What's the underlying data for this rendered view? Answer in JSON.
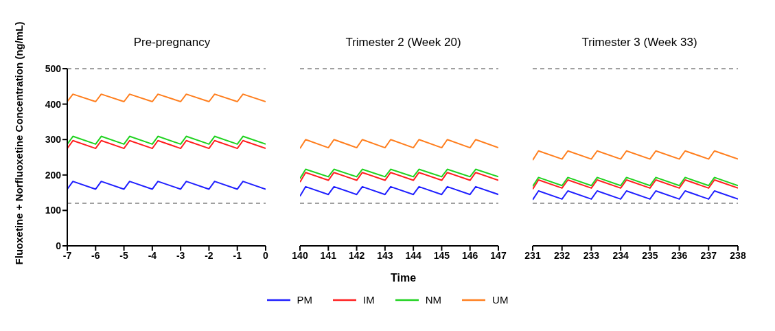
{
  "chart_data": [
    {
      "type": "line",
      "title": "Pre-pregnancy",
      "legend": "bottom",
      "ylabel": "Fluoxetine + Norfluoxetine Concentration (ng/mL)",
      "xlim": [
        -7,
        0
      ],
      "xticks": [
        -7,
        -6,
        -5,
        -4,
        -3,
        -2,
        -1,
        0
      ],
      "ylim": [
        0,
        500
      ],
      "yticks": [
        0,
        100,
        200,
        300,
        400,
        500
      ],
      "grid": false,
      "marker": "none",
      "ref_lines": [
        {
          "axis": "y",
          "value": 500,
          "color": "#a0a0a0",
          "line_style": "dashed"
        },
        {
          "axis": "y",
          "value": 120,
          "color": "#a0a0a0",
          "line_style": "dashed"
        }
      ],
      "series": [
        {
          "name": "PM",
          "color": "#1f1fff",
          "x": [
            -7,
            -6.8,
            -6,
            -5.8,
            -5,
            -4.8,
            -4,
            -3.8,
            -3,
            -2.8,
            -2,
            -1.8,
            -1,
            -0.8,
            0
          ],
          "values": [
            160,
            182,
            160,
            182,
            160,
            182,
            160,
            182,
            160,
            182,
            160,
            182,
            160,
            182,
            160
          ]
        },
        {
          "name": "IM",
          "color": "#ff1f1f",
          "x": [
            -7,
            -6.8,
            -6,
            -5.8,
            -5,
            -4.8,
            -4,
            -3.8,
            -3,
            -2.8,
            -2,
            -1.8,
            -1,
            -0.8,
            0
          ],
          "values": [
            275,
            297,
            275,
            297,
            275,
            297,
            275,
            297,
            275,
            297,
            275,
            297,
            275,
            297,
            275
          ]
        },
        {
          "name": "NM",
          "color": "#1fd21f",
          "x": [
            -7,
            -6.8,
            -6,
            -5.8,
            -5,
            -4.8,
            -4,
            -3.8,
            -3,
            -2.8,
            -2,
            -1.8,
            -1,
            -0.8,
            0
          ],
          "values": [
            287,
            309,
            287,
            309,
            287,
            309,
            287,
            309,
            287,
            309,
            287,
            309,
            287,
            309,
            287
          ]
        },
        {
          "name": "UM",
          "color": "#ff7f1f",
          "x": [
            -7,
            -6.8,
            -6,
            -5.8,
            -5,
            -4.8,
            -4,
            -3.8,
            -3,
            -2.8,
            -2,
            -1.8,
            -1,
            -0.8,
            0
          ],
          "values": [
            407,
            428,
            407,
            428,
            407,
            428,
            407,
            428,
            407,
            428,
            407,
            428,
            407,
            428,
            407
          ]
        }
      ]
    },
    {
      "type": "line",
      "title": "Trimester 2 (Week 20)",
      "xlabel": "Time",
      "tick_labels": "x",
      "xlim": [
        140,
        147
      ],
      "xticks": [
        140,
        141,
        142,
        143,
        144,
        145,
        146,
        147
      ],
      "ylim": [
        0,
        500
      ],
      "grid": false,
      "marker": "none",
      "ref_lines": [
        {
          "axis": "y",
          "value": 500,
          "color": "#a0a0a0",
          "line_style": "dashed"
        },
        {
          "axis": "y",
          "value": 120,
          "color": "#a0a0a0",
          "line_style": "dashed"
        }
      ],
      "series": [
        {
          "color": "#1f1fff",
          "x": [
            140,
            140.2,
            141,
            141.2,
            142,
            142.2,
            143,
            143.2,
            144,
            144.2,
            145,
            145.2,
            146,
            146.2,
            147
          ],
          "values": [
            140,
            167,
            145,
            167,
            145,
            167,
            145,
            167,
            145,
            167,
            145,
            167,
            145,
            167,
            145
          ]
        },
        {
          "color": "#ff1f1f",
          "x": [
            140,
            140.2,
            141,
            141.2,
            142,
            142.2,
            143,
            143.2,
            144,
            144.2,
            145,
            145.2,
            146,
            146.2,
            147
          ],
          "values": [
            180,
            207,
            185,
            207,
            185,
            207,
            185,
            207,
            185,
            207,
            185,
            207,
            185,
            207,
            185
          ]
        },
        {
          "color": "#1fd21f",
          "x": [
            140,
            140.2,
            141,
            141.2,
            142,
            142.2,
            143,
            143.2,
            144,
            144.2,
            145,
            145.2,
            146,
            146.2,
            147
          ],
          "values": [
            190,
            216,
            195,
            216,
            195,
            216,
            195,
            216,
            195,
            216,
            195,
            216,
            195,
            216,
            195
          ]
        },
        {
          "color": "#ff7f1f",
          "x": [
            140,
            140.2,
            141,
            141.2,
            142,
            142.2,
            143,
            143.2,
            144,
            144.2,
            145,
            145.2,
            146,
            146.2,
            147
          ],
          "values": [
            275,
            300,
            277,
            300,
            277,
            300,
            277,
            300,
            277,
            300,
            277,
            300,
            277,
            300,
            277
          ]
        }
      ]
    },
    {
      "type": "line",
      "title": "Trimester 3 (Week 33)",
      "tick_labels": "x",
      "xlim": [
        231,
        238
      ],
      "xticks": [
        231,
        232,
        233,
        234,
        235,
        236,
        237,
        238
      ],
      "ylim": [
        0,
        500
      ],
      "grid": false,
      "marker": "none",
      "ref_lines": [
        {
          "axis": "y",
          "value": 500,
          "color": "#a0a0a0",
          "line_style": "dashed"
        },
        {
          "axis": "y",
          "value": 120,
          "color": "#a0a0a0",
          "line_style": "dashed"
        }
      ],
      "series": [
        {
          "color": "#1f1fff",
          "x": [
            231,
            231.2,
            232,
            232.2,
            233,
            233.2,
            234,
            234.2,
            235,
            235.2,
            236,
            236.2,
            237,
            237.2,
            238
          ],
          "values": [
            130,
            155,
            132,
            155,
            132,
            155,
            132,
            155,
            132,
            155,
            132,
            155,
            132,
            155,
            132
          ]
        },
        {
          "color": "#ff1f1f",
          "x": [
            231,
            231.2,
            232,
            232.2,
            233,
            233.2,
            234,
            234.2,
            235,
            235.2,
            236,
            236.2,
            237,
            237.2,
            238
          ],
          "values": [
            160,
            186,
            163,
            186,
            163,
            186,
            163,
            186,
            163,
            186,
            163,
            186,
            163,
            186,
            163
          ]
        },
        {
          "color": "#1fd21f",
          "x": [
            231,
            231.2,
            232,
            232.2,
            233,
            233.2,
            234,
            234.2,
            235,
            235.2,
            236,
            236.2,
            237,
            237.2,
            238
          ],
          "values": [
            168,
            193,
            170,
            193,
            170,
            193,
            170,
            193,
            170,
            193,
            170,
            193,
            170,
            193,
            170
          ]
        },
        {
          "color": "#ff7f1f",
          "x": [
            231,
            231.2,
            232,
            232.2,
            233,
            233.2,
            234,
            234.2,
            235,
            235.2,
            236,
            236.2,
            237,
            237.2,
            238
          ],
          "values": [
            242,
            268,
            245,
            268,
            245,
            268,
            245,
            268,
            245,
            268,
            245,
            268,
            245,
            268,
            245
          ]
        }
      ]
    }
  ]
}
